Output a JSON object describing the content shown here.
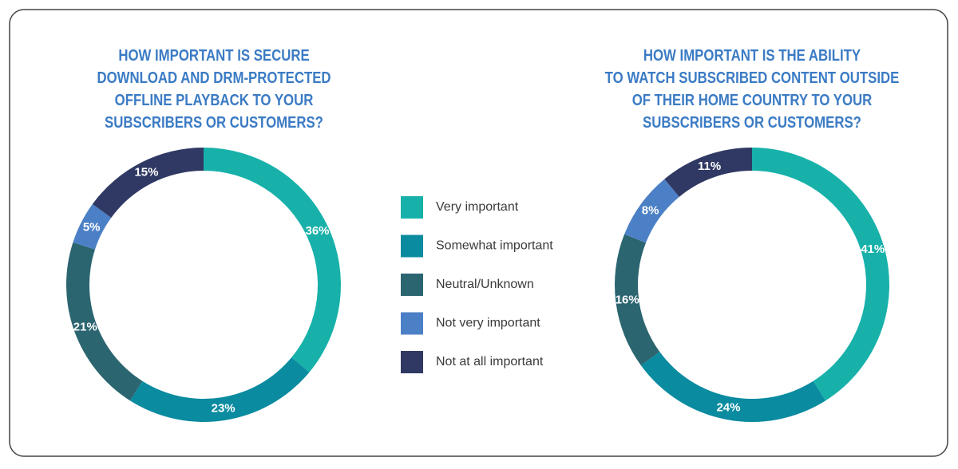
{
  "chart_data": [
    {
      "type": "donut",
      "title": [
        "HOW IMPORTANT IS SECURE",
        "DOWNLOAD AND DRM-PROTECTED",
        "OFFLINE PLAYBACK TO YOUR",
        "SUBSCRIBERS OR CUSTOMERS?"
      ],
      "categories": [
        "Very important",
        "Somewhat important",
        "Neutral/Unknown",
        "Not very important",
        "Not at all important"
      ],
      "values": [
        36,
        23,
        21,
        5,
        15
      ],
      "value_labels": [
        "36%",
        "23%",
        "21%",
        "5%",
        "15%"
      ],
      "colors": [
        "#17b1aa",
        "#0a8ba0",
        "#2b6570",
        "#4c80c6",
        "#2f3963"
      ],
      "legend": "right"
    },
    {
      "type": "donut",
      "title": [
        "HOW IMPORTANT IS THE ABILITY",
        "TO WATCH SUBSCRIBED CONTENT OUTSIDE",
        "OF THEIR HOME COUNTRY TO YOUR",
        "SUBSCRIBERS OR CUSTOMERS?"
      ],
      "categories": [
        "Very important",
        "Somewhat important",
        "Neutral/Unknown",
        "Not very important",
        "Not at all important"
      ],
      "values": [
        41,
        24,
        16,
        8,
        11
      ],
      "value_labels": [
        "41%",
        "24%",
        "16%",
        "8%",
        "11%"
      ],
      "colors": [
        "#17b1aa",
        "#0a8ba0",
        "#2b6570",
        "#4c80c6",
        "#2f3963"
      ]
    }
  ]
}
